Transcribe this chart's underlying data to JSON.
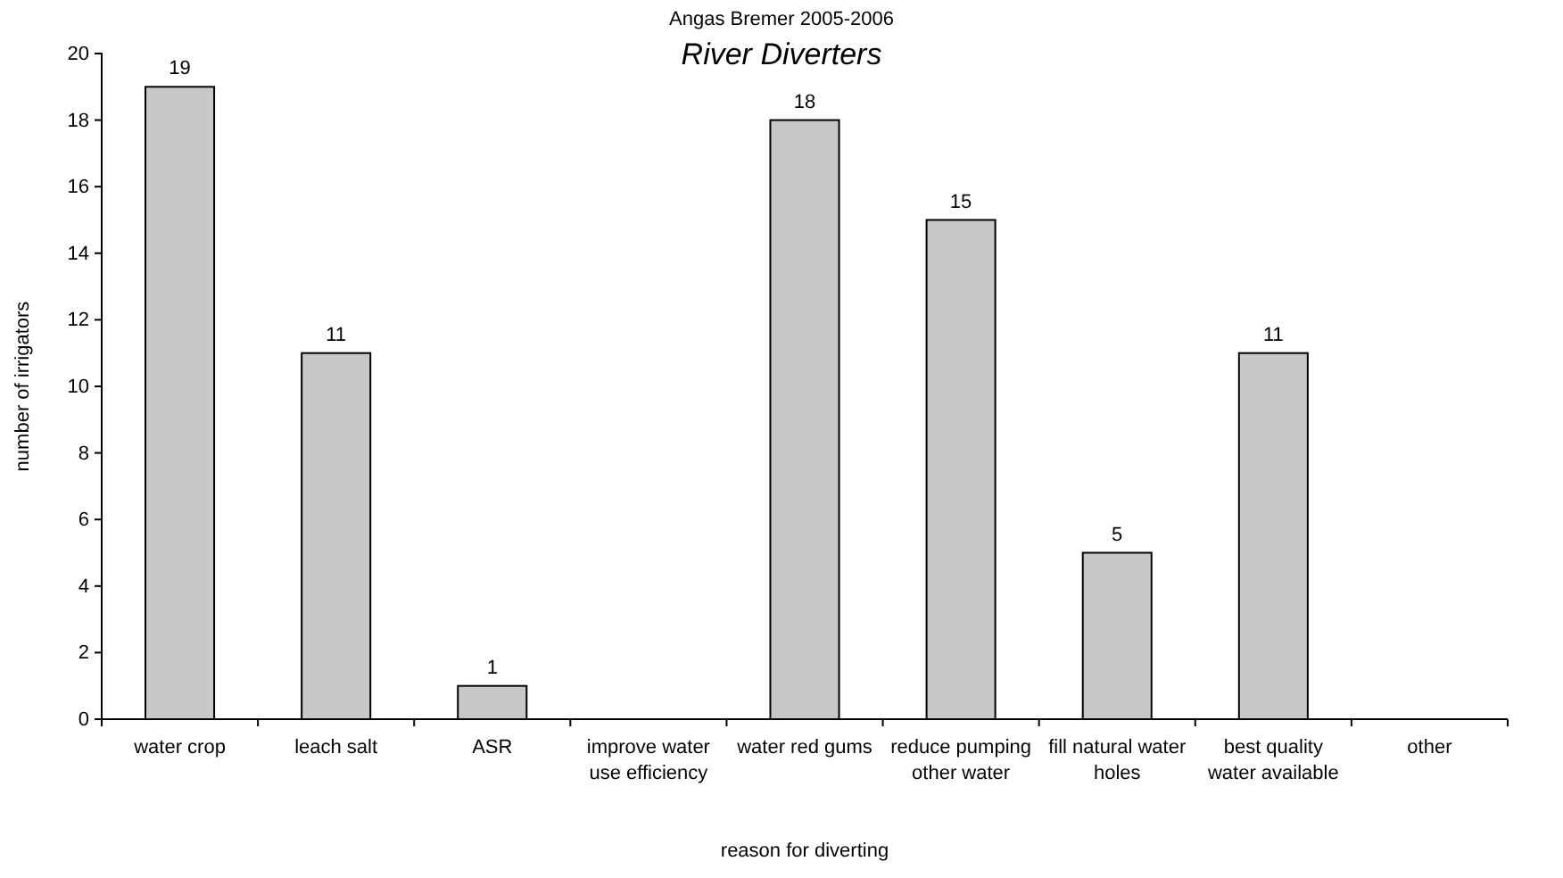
{
  "chart_data": {
    "type": "bar",
    "title": "Angas Bremer 2005-2006",
    "subtitle": "River Diverters",
    "xlabel": "reason for diverting",
    "ylabel": "number of irrigators",
    "categories": [
      "water crop",
      "leach salt",
      "ASR",
      "improve water use efficiency",
      "water red gums",
      "reduce pumping other water",
      "fill natural water holes",
      "best quality water available",
      "other"
    ],
    "values": [
      19,
      11,
      1,
      0,
      18,
      15,
      5,
      11,
      0
    ],
    "value_labels": [
      "19",
      "11",
      "1",
      null,
      "18",
      "15",
      "5",
      "11",
      null
    ],
    "color": "#c8c8c8",
    "ylim": [
      0,
      20
    ],
    "yticks": [
      0,
      2,
      4,
      6,
      8,
      10,
      12,
      14,
      16,
      18,
      20
    ],
    "grid": false
  }
}
